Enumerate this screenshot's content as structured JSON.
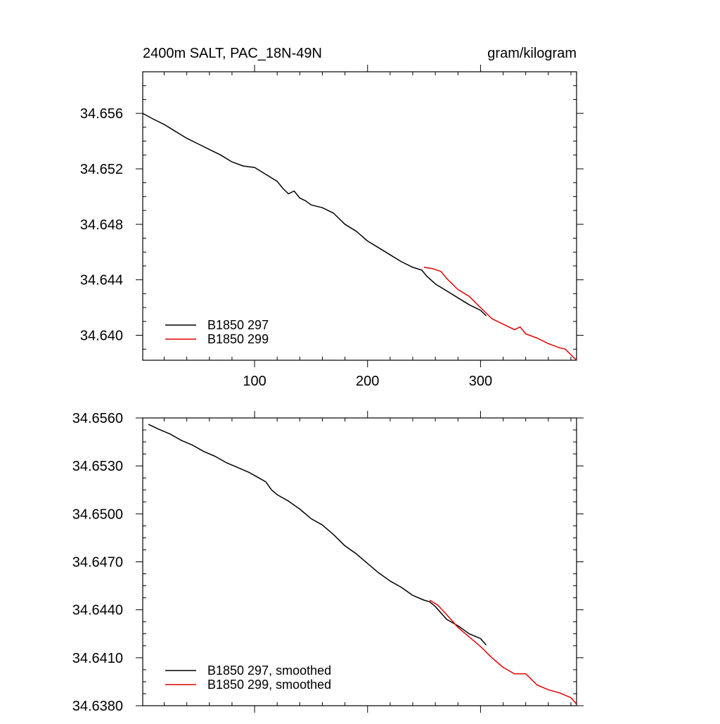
{
  "chart_data": [
    {
      "type": "line",
      "title": "2400m SALT, PAC_18N-49N",
      "units": "gram/kilogram",
      "xlabel": "",
      "ylabel": "",
      "xlim": [
        1,
        385
      ],
      "ylim": [
        34.6382,
        34.659
      ],
      "xticks": [
        100,
        200,
        300
      ],
      "xtick_labels": [
        "100",
        "200",
        "300"
      ],
      "yticks": [
        34.64,
        34.644,
        34.648,
        34.652,
        34.656
      ],
      "ytick_labels": [
        "34.640",
        "34.644",
        "34.648",
        "34.652",
        "34.656"
      ],
      "legend": "bottom-left",
      "grid": false,
      "series": [
        {
          "name": "B1850 297",
          "color": "#000000",
          "x": [
            1,
            10,
            20,
            30,
            40,
            50,
            60,
            70,
            80,
            90,
            100,
            110,
            120,
            125,
            130,
            135,
            140,
            145,
            150,
            160,
            170,
            180,
            190,
            200,
            210,
            220,
            230,
            240,
            248,
            252,
            260,
            270,
            280,
            290,
            300,
            305
          ],
          "y": [
            34.656,
            34.6556,
            34.6552,
            34.6547,
            34.6542,
            34.6538,
            34.6534,
            34.653,
            34.6525,
            34.6522,
            34.6521,
            34.6516,
            34.6511,
            34.6506,
            34.6502,
            34.6504,
            34.6499,
            34.6497,
            34.6494,
            34.6492,
            34.6488,
            34.648,
            34.6475,
            34.6468,
            34.6463,
            34.6458,
            34.6453,
            34.6449,
            34.6447,
            34.6443,
            34.6437,
            34.6432,
            34.6427,
            34.6422,
            34.6418,
            34.6414
          ]
        },
        {
          "name": "B1850 299",
          "color": "#e00000",
          "x": [
            250,
            258,
            265,
            270,
            280,
            290,
            300,
            305,
            310,
            320,
            330,
            335,
            340,
            350,
            360,
            370,
            375,
            380,
            385
          ],
          "y": [
            34.6449,
            34.6448,
            34.6446,
            34.6441,
            34.6433,
            34.6428,
            34.642,
            34.6416,
            34.6412,
            34.6408,
            34.6404,
            34.6406,
            34.6401,
            34.6398,
            34.6394,
            34.6391,
            34.639,
            34.6386,
            34.6382
          ]
        }
      ]
    },
    {
      "type": "line",
      "xlabel": "",
      "ylabel": "",
      "xlim": [
        1,
        385
      ],
      "ylim": [
        34.638,
        34.656
      ],
      "yticks": [
        34.638,
        34.641,
        34.644,
        34.647,
        34.65,
        34.653,
        34.656
      ],
      "ytick_labels": [
        "34.6380",
        "34.6410",
        "34.6440",
        "34.6470",
        "34.6500",
        "34.6530",
        "34.6560"
      ],
      "xticks": [
        100,
        200,
        300
      ],
      "legend": "bottom-left",
      "grid": false,
      "series": [
        {
          "name": "B1850 297, smoothed",
          "color": "#000000",
          "x": [
            6,
            15,
            25,
            35,
            45,
            55,
            65,
            75,
            85,
            95,
            100,
            105,
            110,
            115,
            120,
            130,
            140,
            150,
            160,
            170,
            180,
            190,
            200,
            210,
            220,
            230,
            240,
            250,
            255,
            260,
            270,
            280,
            290,
            300,
            305
          ],
          "y": [
            34.6556,
            34.6553,
            34.655,
            34.6546,
            34.6543,
            34.6539,
            34.6536,
            34.6532,
            34.6529,
            34.6526,
            34.6524,
            34.6522,
            34.652,
            34.6515,
            34.6512,
            34.6508,
            34.6503,
            34.6497,
            34.6493,
            34.6487,
            34.648,
            34.6475,
            34.6469,
            34.6463,
            34.6458,
            34.6454,
            34.6449,
            34.6446,
            34.6445,
            34.6442,
            34.6434,
            34.643,
            34.6425,
            34.6422,
            34.6418
          ]
        },
        {
          "name": "B1850 299, smoothed",
          "color": "#e00000",
          "x": [
            255,
            262,
            270,
            280,
            290,
            300,
            310,
            320,
            330,
            340,
            350,
            360,
            370,
            380,
            385
          ],
          "y": [
            34.6446,
            34.6443,
            34.6437,
            34.6429,
            34.6423,
            34.6417,
            34.641,
            34.6404,
            34.64,
            34.64,
            34.6393,
            34.639,
            34.6388,
            34.6385,
            34.6381
          ]
        }
      ]
    }
  ]
}
